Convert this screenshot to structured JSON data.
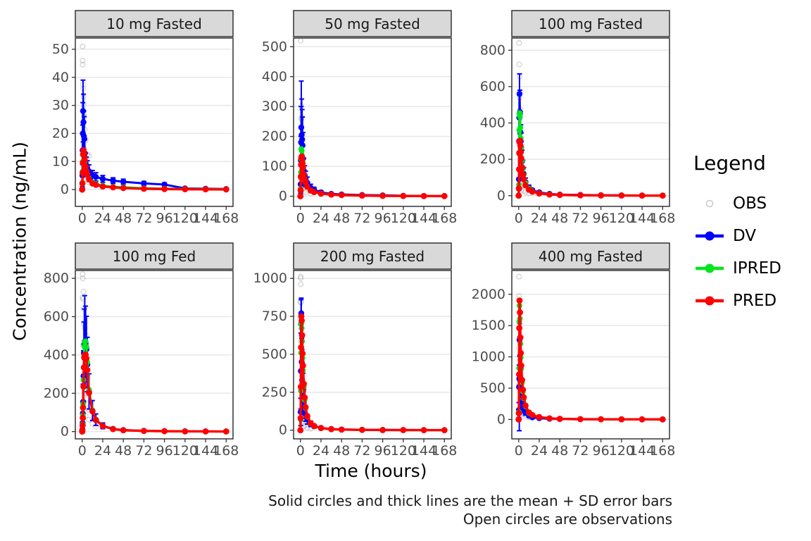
{
  "axes": {
    "y_title": "Concentration (ng/mL)",
    "x_title": "Time (hours)"
  },
  "caption": {
    "line1": "Solid circles and thick lines are the mean + SD error bars",
    "line2": "Open circles are observations"
  },
  "legend": {
    "title": "Legend",
    "entries": [
      {
        "label": "OBS",
        "marker": "open-circle",
        "color": "#9e9e9e"
      },
      {
        "label": "DV",
        "marker": "line-with-point",
        "color": "#0000ff"
      },
      {
        "label": "IPRED",
        "marker": "line-with-point",
        "color": "#00e61a"
      },
      {
        "label": "PRED",
        "marker": "line-with-point",
        "color": "#ff0000"
      }
    ]
  },
  "chart_data": {
    "type": "line",
    "layout": {
      "rows": 2,
      "cols": 3,
      "grid": "horizontal-major-only",
      "legend_position": "right"
    },
    "colors": {
      "obs": "#9e9e9e",
      "dv": "#0000ff",
      "ipred": "#00e61a",
      "pred": "#ff0000"
    },
    "x": {
      "label": "Time (hours)",
      "ticks": [
        0,
        24,
        48,
        72,
        96,
        120,
        144,
        168
      ],
      "lim": [
        -8,
        176
      ]
    },
    "y_label": "Concentration (ng/mL)",
    "time": [
      0,
      0.25,
      0.5,
      0.75,
      1,
      1.5,
      2,
      2.5,
      3,
      4,
      5,
      6,
      8,
      12,
      16,
      24,
      36,
      48,
      72,
      96,
      120,
      144,
      168
    ],
    "facets": [
      {
        "title": "10 mg Fasted",
        "ylim": [
          -6,
          54
        ],
        "yticks": [
          0,
          10,
          20,
          30,
          40,
          50
        ],
        "dv_mean": [
          0,
          5,
          14,
          20,
          28,
          24,
          19,
          18,
          13,
          9.5,
          8.5,
          7.5,
          6.5,
          5,
          4.5,
          3.8,
          3.2,
          2.8,
          2.2,
          1.8,
          0.4,
          0.3,
          0.2
        ],
        "dv_sd": [
          0,
          4,
          9,
          11,
          11,
          10,
          9,
          8,
          5,
          3.5,
          3,
          2.8,
          2.3,
          1.8,
          1.5,
          1.2,
          1,
          0.9,
          0.7,
          0.6,
          0.3,
          0.2,
          0.2
        ],
        "ipred": [
          0,
          2.5,
          6.5,
          10,
          12.5,
          13,
          12,
          11,
          10,
          8,
          6.6,
          5.5,
          4,
          2.6,
          2,
          1.4,
          1,
          0.8,
          0.5,
          0.35,
          0.25,
          0.18,
          0.12
        ],
        "pred": [
          0,
          2.2,
          6,
          9.5,
          12.5,
          14,
          13.2,
          12,
          10.5,
          8.2,
          6.5,
          5.2,
          3.6,
          2.2,
          1.7,
          1.1,
          0.8,
          0.55,
          0.3,
          0.18,
          0.12,
          0.08,
          0.05
        ],
        "obs": [
          [
            0.5,
            51
          ],
          [
            0.55,
            46
          ],
          [
            0.5,
            44.5
          ],
          [
            1,
            37.5
          ],
          [
            1.3,
            36
          ],
          [
            1.5,
            33
          ],
          [
            1.6,
            30
          ],
          [
            2,
            27
          ],
          [
            2.2,
            26
          ],
          [
            3,
            21.5
          ],
          [
            4,
            17.5
          ],
          [
            2.5,
            14.5
          ],
          [
            6,
            12.5
          ],
          [
            1,
            20
          ],
          [
            0.5,
            9
          ],
          [
            1.2,
            6
          ],
          [
            3,
            8
          ],
          [
            4,
            5
          ],
          [
            6,
            3.5
          ],
          [
            8,
            2.5
          ],
          [
            8,
            12
          ],
          [
            12,
            2
          ],
          [
            2,
            5
          ]
        ]
      },
      {
        "title": "50 mg Fasted",
        "ylim": [
          -34,
          529
        ],
        "yticks": [
          0,
          100,
          200,
          300,
          400,
          500
        ],
        "dv_mean": [
          0,
          40,
          120,
          180,
          230,
          205,
          190,
          170,
          125,
          85,
          70,
          58,
          45,
          28,
          21,
          13,
          8,
          6,
          4,
          3,
          1.5,
          1,
          0.8
        ],
        "dv_sd": [
          0,
          30,
          80,
          120,
          155,
          120,
          100,
          95,
          88,
          42,
          32,
          26,
          19,
          12,
          9,
          6,
          4,
          3,
          2,
          1.5,
          1,
          0.8,
          0.5
        ],
        "ipred": [
          0,
          25,
          80,
          125,
          158,
          152,
          135,
          118,
          100,
          74,
          58,
          46,
          31,
          18,
          13,
          8,
          5,
          3.5,
          2,
          1.2,
          0.8,
          0.5,
          0.3
        ],
        "pred": [
          0,
          20,
          65,
          105,
          128,
          133,
          124,
          110,
          96,
          73,
          57,
          46,
          32,
          19,
          14,
          9,
          5.5,
          4,
          2.2,
          1.3,
          0.8,
          0.5,
          0.3
        ],
        "obs": [
          [
            0.3,
            520
          ],
          [
            1,
            302
          ],
          [
            1.2,
            262
          ],
          [
            1.1,
            258
          ],
          [
            1.5,
            205
          ],
          [
            2,
            185
          ],
          [
            1.5,
            120
          ],
          [
            2,
            110
          ],
          [
            2.5,
            95
          ],
          [
            3,
            72
          ],
          [
            4,
            62
          ],
          [
            6,
            42
          ],
          [
            8,
            32
          ],
          [
            2.5,
            22
          ],
          [
            4,
            16
          ],
          [
            6,
            12
          ],
          [
            12,
            9
          ],
          [
            24,
            6
          ],
          [
            0.5,
            60
          ],
          [
            1,
            40
          ]
        ]
      },
      {
        "title": "100 mg Fasted",
        "ylim": [
          -59,
          867
        ],
        "yticks": [
          0,
          200,
          400,
          600,
          800
        ],
        "dv_mean": [
          0,
          90,
          300,
          430,
          560,
          460,
          350,
          300,
          265,
          190,
          150,
          120,
          75,
          45,
          30,
          18,
          10,
          6,
          4,
          2.5,
          1.8,
          1.2,
          1
        ],
        "dv_sd": [
          0,
          60,
          150,
          130,
          110,
          120,
          100,
          90,
          80,
          60,
          45,
          35,
          22,
          13,
          9,
          5,
          3,
          2,
          1.5,
          1,
          0.8,
          0.5,
          0.4
        ],
        "ipred": [
          0,
          60,
          230,
          360,
          455,
          435,
          375,
          315,
          265,
          195,
          150,
          115,
          70,
          40,
          25,
          14,
          7,
          4,
          2,
          1.2,
          0.8,
          0.5,
          0.3
        ],
        "pred": [
          0,
          40,
          145,
          235,
          295,
          302,
          275,
          240,
          205,
          155,
          117,
          90,
          57,
          33,
          22,
          12,
          6.5,
          4,
          2,
          1.2,
          0.8,
          0.5,
          0.3
        ],
        "obs": [
          [
            0.5,
            840
          ],
          [
            0.6,
            722
          ],
          [
            1,
            655
          ],
          [
            1,
            540
          ],
          [
            1.5,
            472
          ],
          [
            1.5,
            420
          ],
          [
            2,
            305
          ],
          [
            2,
            262
          ],
          [
            3,
            212
          ],
          [
            3,
            162
          ],
          [
            4,
            122
          ],
          [
            4,
            96
          ],
          [
            6,
            72
          ],
          [
            2,
            42
          ],
          [
            3,
            32
          ],
          [
            6,
            26
          ],
          [
            8,
            20
          ],
          [
            1,
            82
          ],
          [
            12,
            12
          ],
          [
            2.5,
            55
          ]
        ]
      },
      {
        "title": "100 mg Fed",
        "ylim": [
          -38,
          841
        ],
        "yticks": [
          0,
          200,
          400,
          600,
          800
        ],
        "dv_mean": [
          0,
          10,
          45,
          95,
          155,
          290,
          410,
          455,
          470,
          460,
          430,
          350,
          210,
          110,
          62,
          30,
          14,
          8,
          4,
          2.5,
          1.5,
          1,
          0.8
        ],
        "dv_sd": [
          0,
          8,
          32,
          62,
          92,
          132,
          162,
          185,
          240,
          195,
          172,
          142,
          92,
          52,
          30,
          15,
          8,
          5,
          3,
          2,
          1,
          0.8,
          0.5
        ],
        "ipred": [
          0,
          8,
          38,
          85,
          145,
          270,
          390,
          445,
          468,
          472,
          442,
          362,
          218,
          112,
          63,
          30,
          13,
          7,
          3.5,
          2,
          1.2,
          0.8,
          0.5
        ],
        "pred": [
          0,
          6,
          32,
          72,
          125,
          235,
          335,
          385,
          400,
          402,
          382,
          322,
          202,
          106,
          60,
          29,
          13,
          7,
          3.5,
          2,
          1.2,
          0.8,
          0.5
        ],
        "obs": [
          [
            0.5,
            822
          ],
          [
            0.7,
            800
          ],
          [
            1.5,
            730
          ],
          [
            0.5,
            700
          ],
          [
            1,
            692
          ],
          [
            2,
            642
          ],
          [
            2.2,
            562
          ],
          [
            3,
            540
          ],
          [
            1,
            452
          ],
          [
            2.5,
            422
          ],
          [
            3,
            382
          ],
          [
            4,
            302
          ],
          [
            2,
            232
          ],
          [
            3.5,
            212
          ],
          [
            4,
            200
          ],
          [
            6,
            172
          ],
          [
            2.5,
            152
          ],
          [
            6,
            122
          ],
          [
            8,
            112
          ],
          [
            4,
            82
          ],
          [
            8,
            62
          ],
          [
            12,
            42
          ],
          [
            16,
            26
          ],
          [
            5,
            500
          ],
          [
            1.5,
            262
          ]
        ]
      },
      {
        "title": "200 mg Fasted",
        "ylim": [
          -57,
          1052
        ],
        "yticks": [
          0,
          250,
          500,
          750,
          1000
        ],
        "dv_mean": [
          0,
          120,
          390,
          700,
          770,
          450,
          330,
          290,
          255,
          185,
          140,
          105,
          72,
          42,
          26,
          15,
          8,
          5,
          3,
          2,
          1.5,
          1,
          0.8
        ],
        "dv_sd": [
          0,
          90,
          250,
          160,
          100,
          155,
          200,
          150,
          120,
          82,
          62,
          46,
          32,
          18,
          12,
          8,
          5,
          3,
          2,
          1.5,
          1,
          0.8,
          0.5
        ],
        "ipred": [
          0,
          70,
          260,
          510,
          700,
          672,
          585,
          475,
          395,
          285,
          200,
          145,
          88,
          43,
          26,
          13,
          6.5,
          3.8,
          1.8,
          1.1,
          0.7,
          0.4,
          0.3
        ],
        "pred": [
          0,
          80,
          285,
          545,
          750,
          722,
          625,
          505,
          425,
          305,
          215,
          152,
          92,
          46,
          28,
          14,
          7,
          4,
          2,
          1.2,
          0.8,
          0.5,
          0.3
        ],
        "obs": [
          [
            0.25,
            1012
          ],
          [
            0.4,
            1002
          ],
          [
            0.3,
            962
          ],
          [
            0.5,
            845
          ],
          [
            0.35,
            840
          ],
          [
            1,
            622
          ],
          [
            1.5,
            602
          ],
          [
            0.5,
            582
          ],
          [
            2,
            232
          ],
          [
            1.6,
            222
          ],
          [
            3,
            182
          ],
          [
            2,
            86
          ],
          [
            3,
            76
          ],
          [
            2.5,
            62
          ],
          [
            4,
            46
          ],
          [
            6,
            32
          ],
          [
            4,
            26
          ],
          [
            8,
            16
          ],
          [
            12,
            10
          ],
          [
            1,
            302
          ]
        ]
      },
      {
        "title": "400 mg Fasted",
        "ylim": [
          -310,
          2380
        ],
        "yticks": [
          0,
          500,
          1000,
          1500,
          2000
        ],
        "dv_mean": [
          0,
          150,
          520,
          650,
          1270,
          820,
          620,
          510,
          390,
          285,
          225,
          165,
          105,
          58,
          36,
          20,
          10,
          6,
          3,
          2,
          1.5,
          1,
          0.8
        ],
        "dv_sd": [
          0,
          120,
          350,
          830,
          260,
          210,
          190,
          155,
          125,
          92,
          72,
          52,
          36,
          20,
          12,
          8,
          5,
          3,
          2,
          1.5,
          1,
          0.8,
          0.5
        ],
        "ipred": [
          0,
          120,
          820,
          1560,
          1820,
          1610,
          1210,
          990,
          810,
          590,
          445,
          335,
          208,
          102,
          66,
          36,
          16,
          9,
          4.5,
          2.7,
          1.8,
          1.2,
          0.9
        ],
        "pred": [
          0,
          100,
          720,
          1460,
          1900,
          1710,
          1310,
          1060,
          860,
          630,
          475,
          355,
          222,
          112,
          70,
          38,
          18,
          10,
          5,
          3,
          2,
          1.5,
          1
        ],
        "obs": [
          [
            0.4,
            2282
          ],
          [
            0.6,
            1972
          ],
          [
            1,
            1312
          ],
          [
            0.5,
            1142
          ],
          [
            1.5,
            962
          ],
          [
            0.5,
            562
          ],
          [
            0.75,
            522
          ],
          [
            1,
            482
          ],
          [
            2,
            312
          ],
          [
            3,
            322
          ],
          [
            2.5,
            302
          ],
          [
            4,
            152
          ],
          [
            3,
            142
          ],
          [
            6,
            92
          ],
          [
            2,
            82
          ],
          [
            8,
            62
          ],
          [
            4,
            52
          ],
          [
            12,
            32
          ],
          [
            1.2,
            62
          ],
          [
            16,
            22
          ]
        ]
      }
    ]
  }
}
